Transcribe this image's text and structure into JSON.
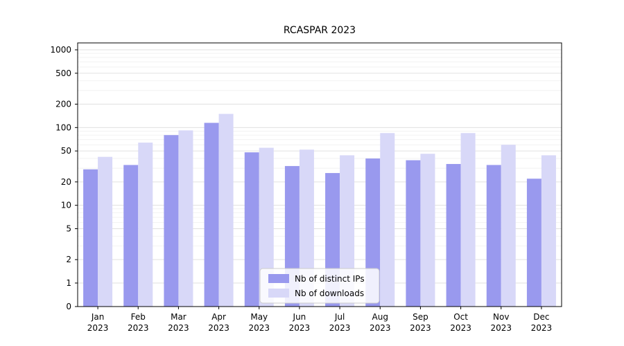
{
  "chart_data": {
    "type": "bar",
    "title": "RCASPAR 2023",
    "year": "2023",
    "categories": [
      "Jan",
      "Feb",
      "Mar",
      "Apr",
      "May",
      "Jun",
      "Jul",
      "Aug",
      "Sep",
      "Oct",
      "Nov",
      "Dec"
    ],
    "series": [
      {
        "name": "Nb of distinct IPs",
        "color": "#9999ee",
        "values": [
          29,
          33,
          80,
          115,
          48,
          32,
          26,
          40,
          38,
          34,
          33,
          22
        ]
      },
      {
        "name": "Nb of downloads",
        "color": "#d8d8f8",
        "values": [
          42,
          64,
          92,
          150,
          55,
          52,
          44,
          85,
          46,
          85,
          60,
          44
        ]
      }
    ],
    "yscale": "symlog",
    "yticks": [
      0,
      1,
      2,
      5,
      10,
      20,
      50,
      100,
      200,
      500,
      1000
    ],
    "ylim": [
      0,
      1300
    ],
    "grid": true,
    "legend": {
      "position": "lower center",
      "labels": [
        "Nb of distinct IPs",
        "Nb of downloads"
      ]
    },
    "colors": {
      "axis": "#000000",
      "major_grid": "#e0e0e0",
      "minor_grid": "#f2f2f2",
      "legend_border": "#cccccc",
      "legend_bg": "#ffffff"
    }
  }
}
